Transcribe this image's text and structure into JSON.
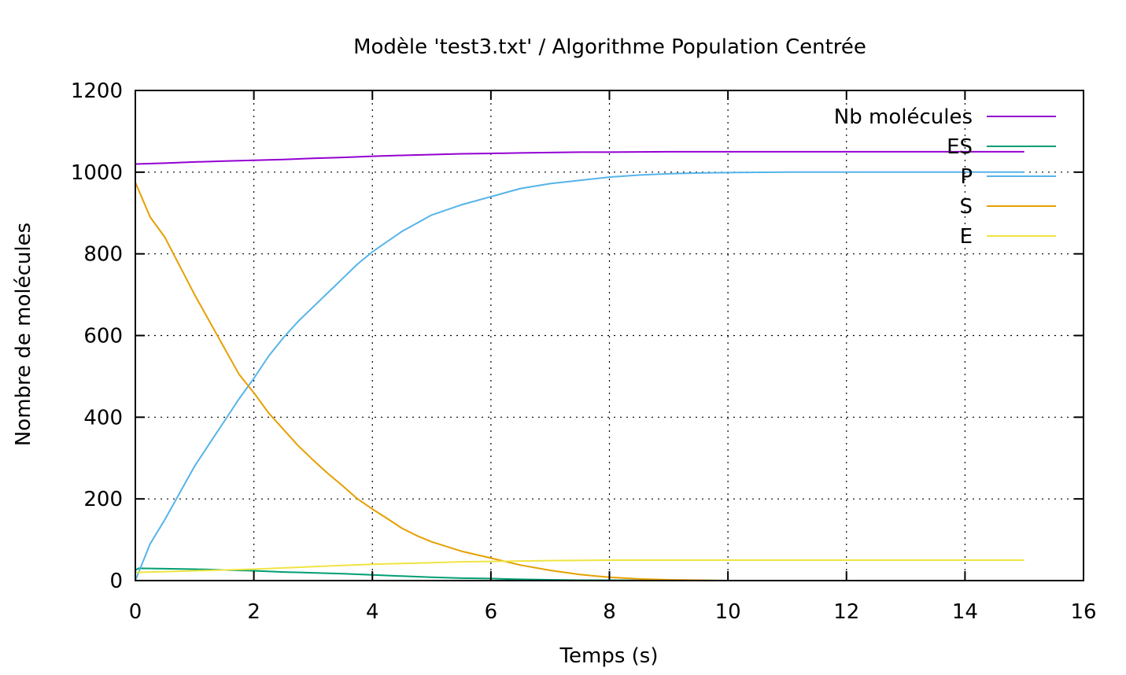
{
  "chart_data": {
    "type": "line",
    "title": "Modèle 'test3.txt' / Algorithme Population Centrée",
    "xlabel": "Temps (s)",
    "ylabel": "Nombre de molécules",
    "xlim": [
      0,
      16
    ],
    "ylim": [
      0,
      1200
    ],
    "xticks": [
      0,
      2,
      4,
      6,
      8,
      10,
      12,
      14,
      16
    ],
    "yticks": [
      0,
      200,
      400,
      600,
      800,
      1000,
      1200
    ],
    "xtick_labels": [
      "0",
      "2",
      "4",
      "6",
      "8",
      "10",
      "12",
      "14",
      "16"
    ],
    "ytick_labels": [
      "0",
      "200",
      "400",
      "600",
      "800",
      "1000",
      "1200"
    ],
    "grid": true,
    "legend_position": "top-right",
    "series": [
      {
        "name": "Nb molécules",
        "color": "#9400d3",
        "x": [
          0,
          0.5,
          1,
          1.5,
          2,
          2.5,
          3,
          3.5,
          4,
          4.5,
          5,
          5.5,
          6,
          6.5,
          7,
          7.5,
          8,
          9,
          10,
          11,
          12,
          13,
          14,
          15
        ],
        "values": [
          1020,
          1022,
          1025,
          1027,
          1029,
          1031,
          1034,
          1036,
          1039,
          1041,
          1043,
          1045,
          1046,
          1047,
          1048,
          1049,
          1049,
          1050,
          1050,
          1050,
          1050,
          1050,
          1050,
          1050
        ]
      },
      {
        "name": "ES",
        "color": "#009e73",
        "x": [
          0,
          0.05,
          0.5,
          1,
          1.5,
          2,
          2.5,
          3,
          3.5,
          4,
          4.5,
          5,
          5.5,
          6,
          6.5,
          7,
          7.5,
          8,
          9,
          10,
          11,
          12,
          13,
          14,
          15
        ],
        "values": [
          25,
          30,
          29,
          28,
          26,
          24,
          21,
          19,
          17,
          14,
          11,
          8,
          6,
          5,
          3,
          2,
          1,
          1,
          0,
          0,
          0,
          0,
          0,
          0,
          0
        ]
      },
      {
        "name": "P",
        "color": "#56b4e9",
        "x": [
          0,
          0.25,
          0.5,
          0.75,
          1,
          1.25,
          1.5,
          1.75,
          2,
          2.25,
          2.5,
          2.75,
          3,
          3.25,
          3.5,
          3.75,
          4,
          4.25,
          4.5,
          4.75,
          5,
          5.5,
          6,
          6.5,
          7,
          7.5,
          8,
          8.5,
          9,
          9.5,
          10,
          11,
          12,
          13,
          14,
          15
        ],
        "values": [
          0,
          90,
          150,
          215,
          280,
          335,
          390,
          445,
          495,
          550,
          595,
          635,
          670,
          705,
          740,
          775,
          805,
          830,
          855,
          875,
          895,
          920,
          940,
          960,
          972,
          980,
          988,
          993,
          996,
          998,
          999,
          1000,
          1000,
          1000,
          1000,
          1000
        ]
      },
      {
        "name": "S",
        "color": "#e69f00",
        "x": [
          0,
          0.25,
          0.5,
          0.75,
          1,
          1.25,
          1.5,
          1.75,
          2,
          2.25,
          2.5,
          2.75,
          3,
          3.25,
          3.5,
          3.75,
          4,
          4.25,
          4.5,
          4.75,
          5,
          5.5,
          6,
          6.5,
          7,
          7.5,
          8,
          8.5,
          9,
          9.5,
          10,
          11,
          12,
          13,
          14,
          15
        ],
        "values": [
          975,
          890,
          840,
          770,
          700,
          635,
          570,
          505,
          460,
          410,
          370,
          330,
          295,
          262,
          232,
          200,
          175,
          152,
          128,
          110,
          95,
          72,
          55,
          38,
          25,
          15,
          8,
          4,
          2,
          1,
          0,
          0,
          0,
          0,
          0,
          0
        ]
      },
      {
        "name": "E",
        "color": "#f0e442",
        "x": [
          0,
          0.5,
          1,
          1.5,
          2,
          2.5,
          3,
          3.5,
          4,
          4.5,
          5,
          5.5,
          6,
          6.5,
          7,
          8,
          9,
          10,
          11,
          12,
          13,
          14,
          15
        ],
        "values": [
          20,
          22,
          24,
          26,
          28,
          31,
          34,
          37,
          40,
          42,
          44,
          46,
          47,
          48,
          49,
          50,
          50,
          50,
          50,
          50,
          50,
          50,
          50
        ]
      }
    ]
  }
}
